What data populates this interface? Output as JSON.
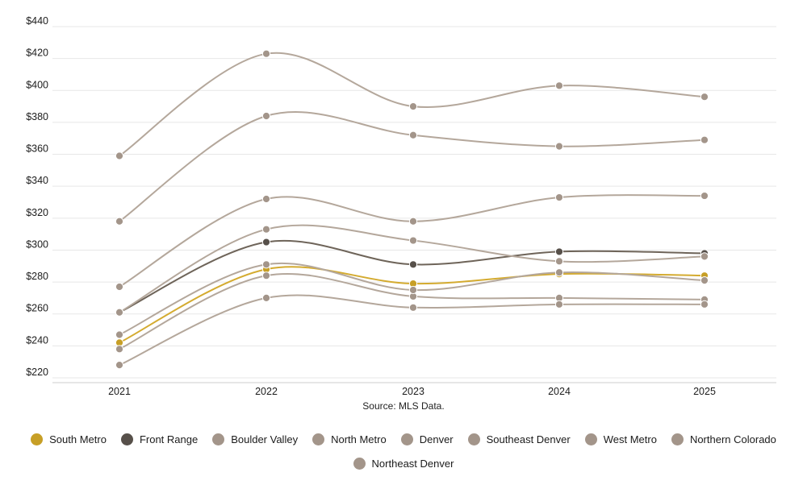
{
  "chart_data": {
    "type": "line",
    "title": "",
    "x_tick_labels": [
      "2021",
      "2022",
      "2023",
      "2024",
      "2025"
    ],
    "y_tick_labels": [
      "$220",
      "$240",
      "$260",
      "$280",
      "$300",
      "$320",
      "$340",
      "$360",
      "$380",
      "$400",
      "$420",
      "$440"
    ],
    "ylim": [
      220,
      440
    ],
    "y_tick_step": 20,
    "y_value_prefix": "$",
    "grid": "horizontal-only",
    "legend_position": "bottom",
    "curve_style": "smooth",
    "source": "Source: MLS Data.",
    "series": [
      {
        "name": "South Metro",
        "line_color": "#d4ab30",
        "dot_color": "#c79f26",
        "values": [
          242,
          288,
          279,
          285,
          284
        ]
      },
      {
        "name": "Front Range",
        "line_color": "#6e6459",
        "dot_color": "#57504a",
        "values": [
          261,
          305,
          291,
          299,
          298
        ]
      },
      {
        "name": "Boulder Valley",
        "line_color": "#b4a79b",
        "dot_color": "#a3958a",
        "values": [
          359,
          423,
          390,
          403,
          396
        ]
      },
      {
        "name": "North Metro",
        "line_color": "#b4a79b",
        "dot_color": "#a3958a",
        "values": [
          238,
          284,
          271,
          270,
          269
        ]
      },
      {
        "name": "Denver",
        "line_color": "#b4a79b",
        "dot_color": "#a3958a",
        "values": [
          318,
          384,
          372,
          365,
          369
        ]
      },
      {
        "name": "Southeast Denver",
        "line_color": "#b4a79b",
        "dot_color": "#a3958a",
        "values": [
          261,
          313,
          306,
          293,
          296
        ]
      },
      {
        "name": "West Metro",
        "line_color": "#b4a79b",
        "dot_color": "#a3958a",
        "values": [
          277,
          332,
          318,
          333,
          334
        ]
      },
      {
        "name": "Northern Colorado",
        "line_color": "#b4a79b",
        "dot_color": "#a3958a",
        "values": [
          228,
          270,
          264,
          266,
          266
        ]
      },
      {
        "name": "Northeast Denver",
        "line_color": "#b4a79b",
        "dot_color": "#a3958a",
        "values": [
          247,
          291,
          275,
          286,
          281
        ]
      }
    ],
    "colors": {
      "gridline": "#e7e7e7",
      "axis_line": "#cccccc",
      "tick_text": "#1c1c1c"
    }
  }
}
